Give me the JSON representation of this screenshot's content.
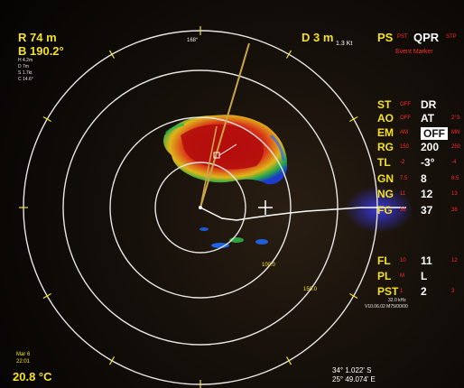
{
  "header": {
    "range_label": "R 74 m",
    "bearing_label": "B 190.2°",
    "readout_lines": [
      "H   4.2m",
      "D   7m",
      "S  1.7kt",
      "C  14.6°"
    ],
    "depth": "D 3 m",
    "speed": "1.3 Kt",
    "heading": "168°",
    "ps_label": "PS",
    "pst_tag": "PST",
    "mode": "QPR",
    "stp_tag": "STP",
    "event_marker": "Event Marker"
  },
  "controls": [
    {
      "label": "ST",
      "low": "OFF",
      "value": "DR",
      "high": ""
    },
    {
      "label": "AO",
      "low": "OFF",
      "value": "AT",
      "high": "2°3"
    },
    {
      "label": "EM",
      "low": "AM",
      "value": "OFF",
      "high": "MN"
    },
    {
      "label": "RG",
      "low": "150",
      "value": "200",
      "high": "250"
    },
    {
      "label": "TL",
      "low": "-2",
      "value": "-3°",
      "high": "-4"
    },
    {
      "label": "GN",
      "low": "7.5",
      "value": "8",
      "high": "8.5"
    },
    {
      "label": "NG",
      "low": "11",
      "value": "12",
      "high": "13"
    },
    {
      "label": "FG",
      "low": "36",
      "value": "37",
      "high": "38"
    }
  ],
  "lower_controls": [
    {
      "label": "FL",
      "low": "10",
      "value": "11",
      "high": "12"
    },
    {
      "label": "PL",
      "low": "M",
      "value": "L",
      "high": ""
    },
    {
      "label": "PST",
      "low": "1",
      "value": "2",
      "high": "3"
    }
  ],
  "frequency": "32.0 kHz",
  "version": "V10.06.02  M75/00/00",
  "date": "Mar 6",
  "time": "22:01",
  "temperature": "20.8 °C",
  "latitude": "34° 1.022' S",
  "longitude": "25° 49.074' E",
  "range_labels": [
    "100.0",
    "150.0"
  ],
  "colors": {
    "accent": "#f5e21b",
    "warning": "#ff2a2a",
    "text": "#ffffff",
    "ring": "#e6e6e6"
  }
}
